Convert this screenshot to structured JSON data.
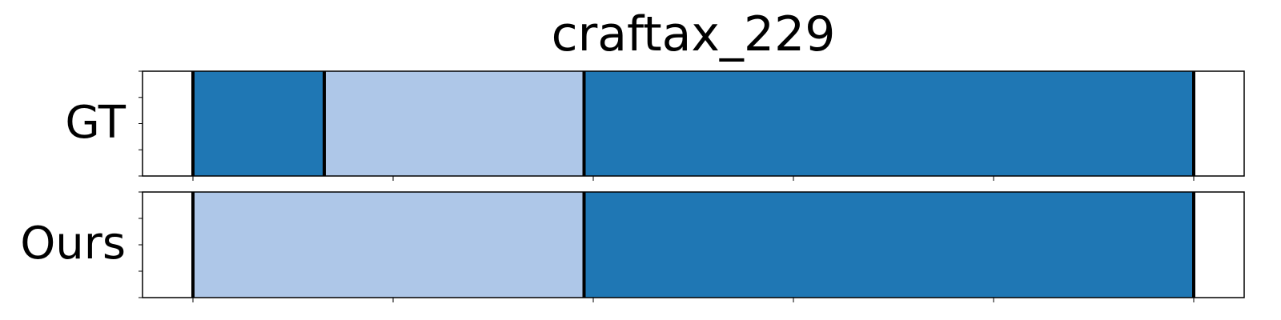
{
  "chart_data": {
    "type": "segmentation-timeline",
    "title": "craftax_229",
    "x_range": [
      -126,
      2626
    ],
    "x_ticks": [
      0,
      500,
      1000,
      1500,
      2000,
      2500
    ],
    "rows": [
      {
        "label": "GT",
        "segments": [
          {
            "start": 0,
            "end": 328,
            "class": "A"
          },
          {
            "start": 328,
            "end": 977,
            "class": "B"
          },
          {
            "start": 977,
            "end": 2500,
            "class": "A"
          }
        ],
        "boundaries": [
          0,
          328,
          977,
          2500
        ]
      },
      {
        "label": "Ours",
        "segments": [
          {
            "start": 0,
            "end": 977,
            "class": "B"
          },
          {
            "start": 977,
            "end": 2500,
            "class": "A"
          }
        ],
        "boundaries": [
          0,
          977,
          2500
        ]
      }
    ],
    "class_colors": {
      "A": "#1f77b4",
      "B": "#aec7e8"
    },
    "tick_labels_visible": false,
    "grid": false
  }
}
